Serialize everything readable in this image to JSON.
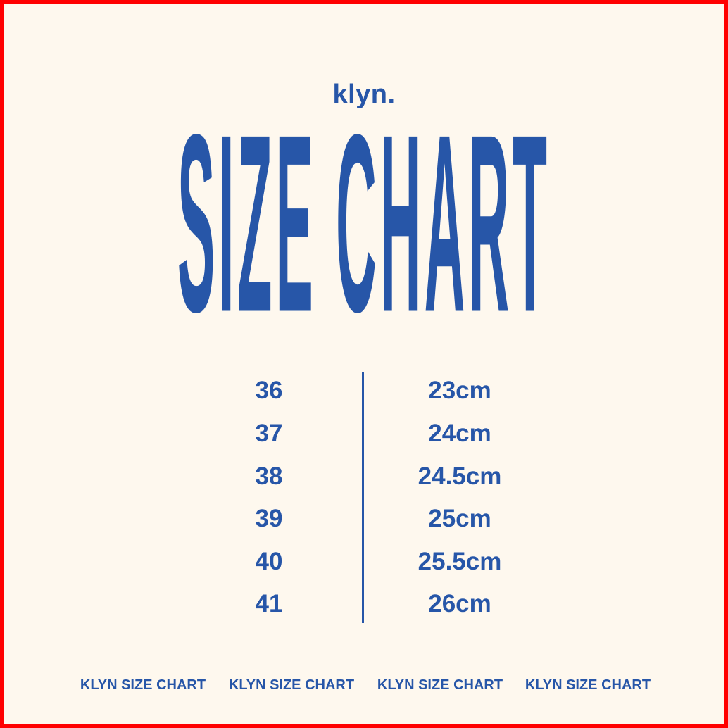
{
  "brand": "klyn.",
  "title": "SIZE CHART",
  "colors": {
    "background": "#fef8ee",
    "text": "#2756a8",
    "border": "#ff0000"
  },
  "rows": [
    {
      "size": "36",
      "length": "23cm"
    },
    {
      "size": "37",
      "length": "24cm"
    },
    {
      "size": "38",
      "length": "24.5cm"
    },
    {
      "size": "39",
      "length": "25cm"
    },
    {
      "size": "40",
      "length": "25.5cm"
    },
    {
      "size": "41",
      "length": "26cm"
    }
  ],
  "footer": [
    "KLYN SIZE CHART",
    "KLYN SIZE CHART",
    "KLYN SIZE CHART",
    "KLYN SIZE CHART"
  ]
}
